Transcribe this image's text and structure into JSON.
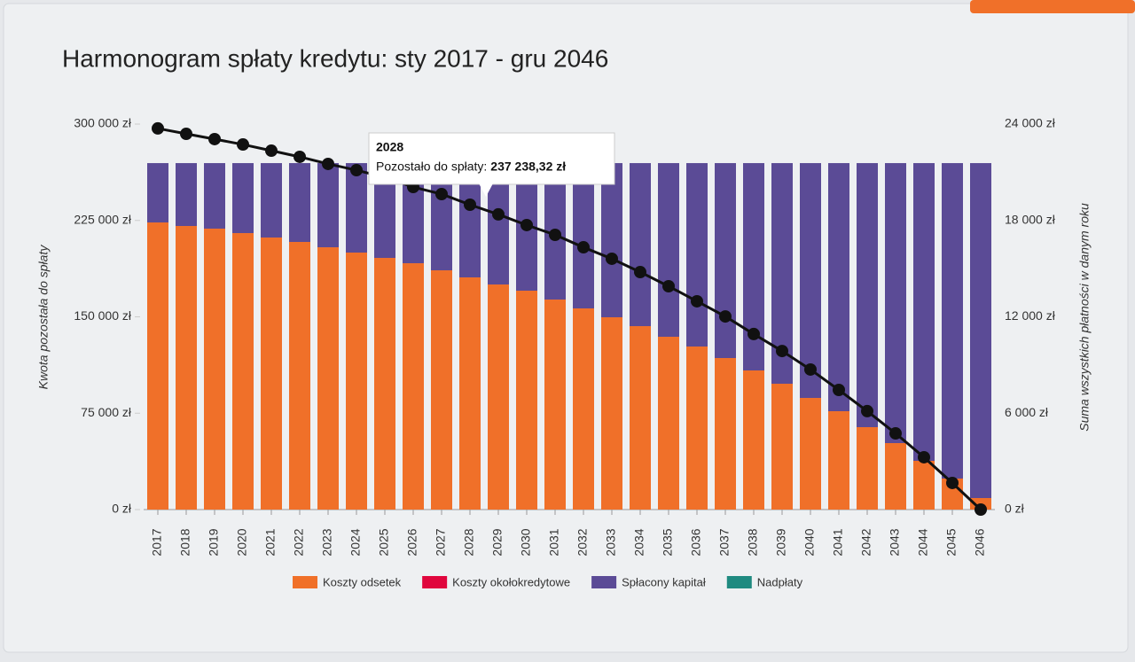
{
  "chart_data": {
    "type": "bar",
    "title": "Harmonogram spłaty kredytu: sty 2017 - gru 2046",
    "y_label": "Kwota pozostała do spłaty",
    "y2_label": "Suma wszystkich płatności w danym roku",
    "categories": [
      "2017",
      "2018",
      "2019",
      "2020",
      "2021",
      "2022",
      "2023",
      "2024",
      "2025",
      "2026",
      "2027",
      "2028",
      "2029",
      "2030",
      "2031",
      "2032",
      "2033",
      "2034",
      "2035",
      "2036",
      "2037",
      "2038",
      "2039",
      "2040",
      "2041",
      "2042",
      "2043",
      "2044",
      "2045",
      "2046"
    ],
    "ylim": [
      0,
      300000
    ],
    "yticks": [
      {
        "value": 0,
        "label": "0 zł"
      },
      {
        "value": 75000,
        "label": "75 000 zł"
      },
      {
        "value": 150000,
        "label": "150 000 zł"
      },
      {
        "value": 225000,
        "label": "225 000 zł"
      },
      {
        "value": 300000,
        "label": "300 000 zł"
      }
    ],
    "y2lim": [
      0,
      24000
    ],
    "y2ticks": [
      {
        "value": 0,
        "label": "0 zł"
      },
      {
        "value": 6000,
        "label": "6 000 zł"
      },
      {
        "value": 12000,
        "label": "12 000 zł"
      },
      {
        "value": 18000,
        "label": "18 000 zł"
      },
      {
        "value": 24000,
        "label": "24 000 zł"
      }
    ],
    "legend": "bottom",
    "series": [
      {
        "name": "Koszty odsetek",
        "color": "#f07029",
        "axis": "y2",
        "values": [
          17875,
          17655,
          17490,
          17213,
          16937,
          16662,
          16330,
          16000,
          15668,
          15337,
          14896,
          14455,
          14013,
          13627,
          13075,
          12524,
          11972,
          11420,
          10758,
          10151,
          9434,
          8662,
          7834,
          6951,
          6124,
          5131,
          4138,
          3034,
          1931,
          717
        ]
      },
      {
        "name": "Koszty okołokredytowe",
        "color": "#e0063d",
        "axis": "y2",
        "values": [
          0,
          0,
          0,
          0,
          0,
          0,
          0,
          0,
          0,
          0,
          0,
          0,
          0,
          0,
          0,
          0,
          0,
          0,
          0,
          0,
          0,
          0,
          0,
          0,
          0,
          0,
          0,
          0,
          0,
          0
        ]
      },
      {
        "name": "Spłacony kapitał",
        "color": "#5b4b96",
        "axis": "y2",
        "values": [
          3695,
          3915,
          4080,
          4357,
          4633,
          4908,
          5240,
          5570,
          5902,
          6233,
          6674,
          7115,
          7557,
          7943,
          8495,
          9046,
          9598,
          10150,
          10812,
          11419,
          12136,
          12908,
          13736,
          14619,
          15446,
          16439,
          17432,
          18536,
          19639,
          20853
        ]
      },
      {
        "name": "Nadpłaty",
        "color": "#1f8a80",
        "axis": "y2",
        "values": [
          0,
          0,
          0,
          0,
          0,
          0,
          0,
          0,
          0,
          0,
          0,
          0,
          0,
          0,
          0,
          0,
          0,
          0,
          0,
          0,
          0,
          0,
          0,
          0,
          0,
          0,
          0,
          0,
          0,
          0
        ]
      },
      {
        "type": "line",
        "color": "#111111",
        "values": [
          296600,
          292400,
          288300,
          284100,
          279300,
          274500,
          269000,
          264100,
          258600,
          251000,
          245500,
          237238.32,
          229700,
          221400,
          213800,
          204100,
          195200,
          184800,
          173800,
          162100,
          150300,
          136600,
          123400,
          109000,
          93100,
          76600,
          59300,
          40700,
          20700,
          0
        ]
      }
    ],
    "tooltip": {
      "title": "2028",
      "text": "Pozostało do spłaty:",
      "value": "237 238,32 zł"
    }
  }
}
